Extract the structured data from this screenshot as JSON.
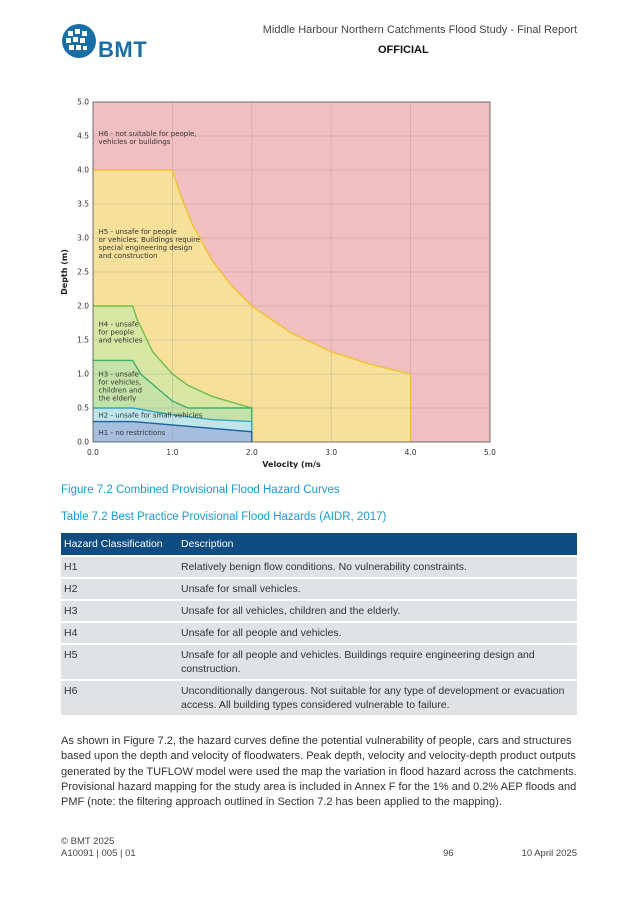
{
  "header": {
    "logo_text": "BMT",
    "doc_title": "Middle Harbour Northern Catchments Flood Study - Final Report",
    "classification": "OFFICIAL"
  },
  "colors": {
    "brand_blue": "#1a6ea8",
    "caption_blue": "#1a9ad6",
    "table_header": "#0f4c81",
    "row_bg": "#dfe3e6",
    "H1": "#a6bedd",
    "H2": "#bfe5ea",
    "H3": "#c4e2a7",
    "H4": "#d8e6a3",
    "H5": "#f6e09a",
    "H6": "#f2bfc0"
  },
  "chart_data": {
    "type": "area",
    "xlabel": "Velocity (m/s",
    "ylabel": "Depth (m)",
    "xlim": [
      0,
      5
    ],
    "ylim": [
      0,
      5
    ],
    "x_ticks": [
      "0.0",
      "1.0",
      "2.0",
      "3.0",
      "4.0",
      "5.0"
    ],
    "y_ticks": [
      "0.0",
      "0.5",
      "1.0",
      "1.5",
      "2.0",
      "2.5",
      "3.0",
      "3.5",
      "4.0",
      "4.5",
      "5.0"
    ],
    "grid": true,
    "regions": [
      {
        "id": "H6",
        "label": [
          "H6 - not suitable for people,",
          "vehicles or buildings"
        ],
        "label_at": [
          0.07,
          4.5
        ]
      },
      {
        "id": "H5",
        "label": [
          "H5 - unsafe for people",
          "or vehicles. Buildings require",
          "special engineering design",
          "and construction"
        ],
        "label_at": [
          0.07,
          3.06
        ]
      },
      {
        "id": "H4",
        "label": [
          "H4 - unsafe",
          "for people",
          "and vehicles"
        ],
        "label_at": [
          0.07,
          1.7
        ]
      },
      {
        "id": "H3",
        "label": [
          "H3 - unsafe",
          "for vehicles,",
          "children and",
          "the elderly"
        ],
        "label_at": [
          0.07,
          0.96
        ]
      },
      {
        "id": "H2",
        "label": [
          "H2 - unsafe for small vehicles"
        ],
        "label_at": [
          0.07,
          0.36
        ]
      },
      {
        "id": "H1",
        "label": [
          "H1 - no restrictions"
        ],
        "label_at": [
          0.07,
          0.1
        ]
      }
    ],
    "boundaries": {
      "H1": [
        [
          0,
          0.3
        ],
        [
          0.5,
          0.3
        ],
        [
          2.0,
          0.15
        ],
        [
          2.0,
          0
        ]
      ],
      "H2": [
        [
          0,
          0.5
        ],
        [
          0.5,
          0.5
        ],
        [
          1.0,
          0.4
        ],
        [
          1.5,
          0.33
        ],
        [
          2.0,
          0.3
        ],
        [
          2.0,
          0
        ]
      ],
      "H3": [
        [
          0,
          1.2
        ],
        [
          0.5,
          1.2
        ],
        [
          0.6,
          1.0
        ],
        [
          1.0,
          0.6
        ],
        [
          1.2,
          0.5
        ],
        [
          2.0,
          0.5
        ],
        [
          2.0,
          0
        ]
      ],
      "H4": [
        [
          0,
          2.0
        ],
        [
          0.5,
          2.0
        ],
        [
          0.55,
          1.82
        ],
        [
          0.75,
          1.33
        ],
        [
          1.0,
          1.0
        ],
        [
          1.2,
          0.83
        ],
        [
          1.5,
          0.67
        ],
        [
          2.0,
          0.5
        ],
        [
          2.0,
          0
        ]
      ],
      "H5": [
        [
          0,
          4.0
        ],
        [
          1.0,
          4.0
        ],
        [
          1.1,
          3.64
        ],
        [
          1.25,
          3.2
        ],
        [
          1.5,
          2.67
        ],
        [
          1.75,
          2.29
        ],
        [
          2.0,
          2.0
        ],
        [
          2.5,
          1.6
        ],
        [
          3.0,
          1.33
        ],
        [
          3.5,
          1.14
        ],
        [
          4.0,
          1.0
        ],
        [
          4.0,
          0
        ]
      ]
    }
  },
  "figure_caption": "Figure 7.2 Combined Provisional Flood Hazard Curves",
  "table_caption": "Table 7.2 Best Practice Provisional Flood Hazards (AIDR, 2017)",
  "table": {
    "headers": [
      "Hazard Classification",
      "Description"
    ],
    "rows": [
      [
        "H1",
        "Relatively benign flow conditions. No vulnerability constraints."
      ],
      [
        "H2",
        "Unsafe for small vehicles."
      ],
      [
        "H3",
        "Unsafe for all vehicles, children and the elderly."
      ],
      [
        "H4",
        "Unsafe for all people and vehicles."
      ],
      [
        "H5",
        "Unsafe for all people and vehicles. Buildings require engineering design and construction."
      ],
      [
        "H6",
        "Unconditionally dangerous. Not suitable for any type of development or evacuation access. All building types considered vulnerable to failure."
      ]
    ]
  },
  "body_text": "As shown in Figure 7.2, the hazard curves define the potential vulnerability of people, cars and structures based upon the depth and velocity of floodwaters. Peak depth, velocity and velocity-depth product outputs generated by the TUFLOW model were used the map the variation in flood hazard across the catchments. Provisional hazard mapping for the study area is included in Annex F for the 1% and 0.2% AEP floods and PMF (note: the filtering approach outlined in Section 7.2 has been applied to the mapping).",
  "footer": {
    "copyright": "© BMT 2025",
    "doc_ref": "A10091 | 005 | 01",
    "page_number": "96",
    "date": "10 April 2025"
  }
}
